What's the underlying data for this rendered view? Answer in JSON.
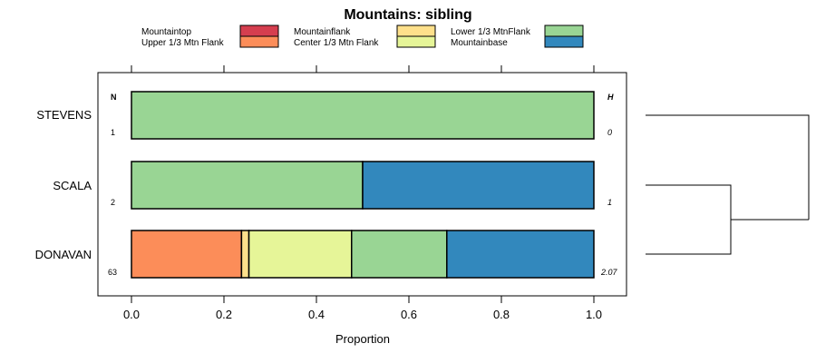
{
  "chart_data": {
    "type": "bar",
    "orientation": "horizontal",
    "stacked": true,
    "title": "Mountains: sibling",
    "xlabel": "Proportion",
    "xlim": [
      0,
      1
    ],
    "x_ticks": [
      "0.0",
      "0.2",
      "0.4",
      "0.6",
      "0.8",
      "1.0"
    ],
    "x_tick_values": [
      0,
      0.2,
      0.4,
      0.6,
      0.8,
      1.0
    ],
    "legend_placement": "top",
    "series": [
      {
        "name": "Mountaintop",
        "color": "#d53e4f"
      },
      {
        "name": "Upper 1/3 Mtn Flank",
        "color": "#fc8d59"
      },
      {
        "name": "Mountainflank",
        "color": "#fee08b"
      },
      {
        "name": "Center 1/3 Mtn Flank",
        "color": "#e6f598"
      },
      {
        "name": "Lower 1/3 MtnFlank",
        "color": "#99d594"
      },
      {
        "name": "Mountainbase",
        "color": "#3288bd"
      }
    ],
    "n_header": "N",
    "h_header": "H",
    "categories": [
      "STEVENS",
      "SCALA",
      "DONAVAN"
    ],
    "rows": [
      {
        "label": "STEVENS",
        "n": "1",
        "h": "0",
        "values": [
          0,
          0,
          0,
          0,
          1.0,
          0
        ]
      },
      {
        "label": "SCALA",
        "n": "2",
        "h": "1",
        "values": [
          0,
          0,
          0,
          0,
          0.5,
          0.5
        ]
      },
      {
        "label": "DONAVAN",
        "n": "63",
        "h": "2.07",
        "values": [
          0,
          0.238,
          0.016,
          0.222,
          0.206,
          0.318
        ]
      }
    ],
    "dendrogram": true
  }
}
